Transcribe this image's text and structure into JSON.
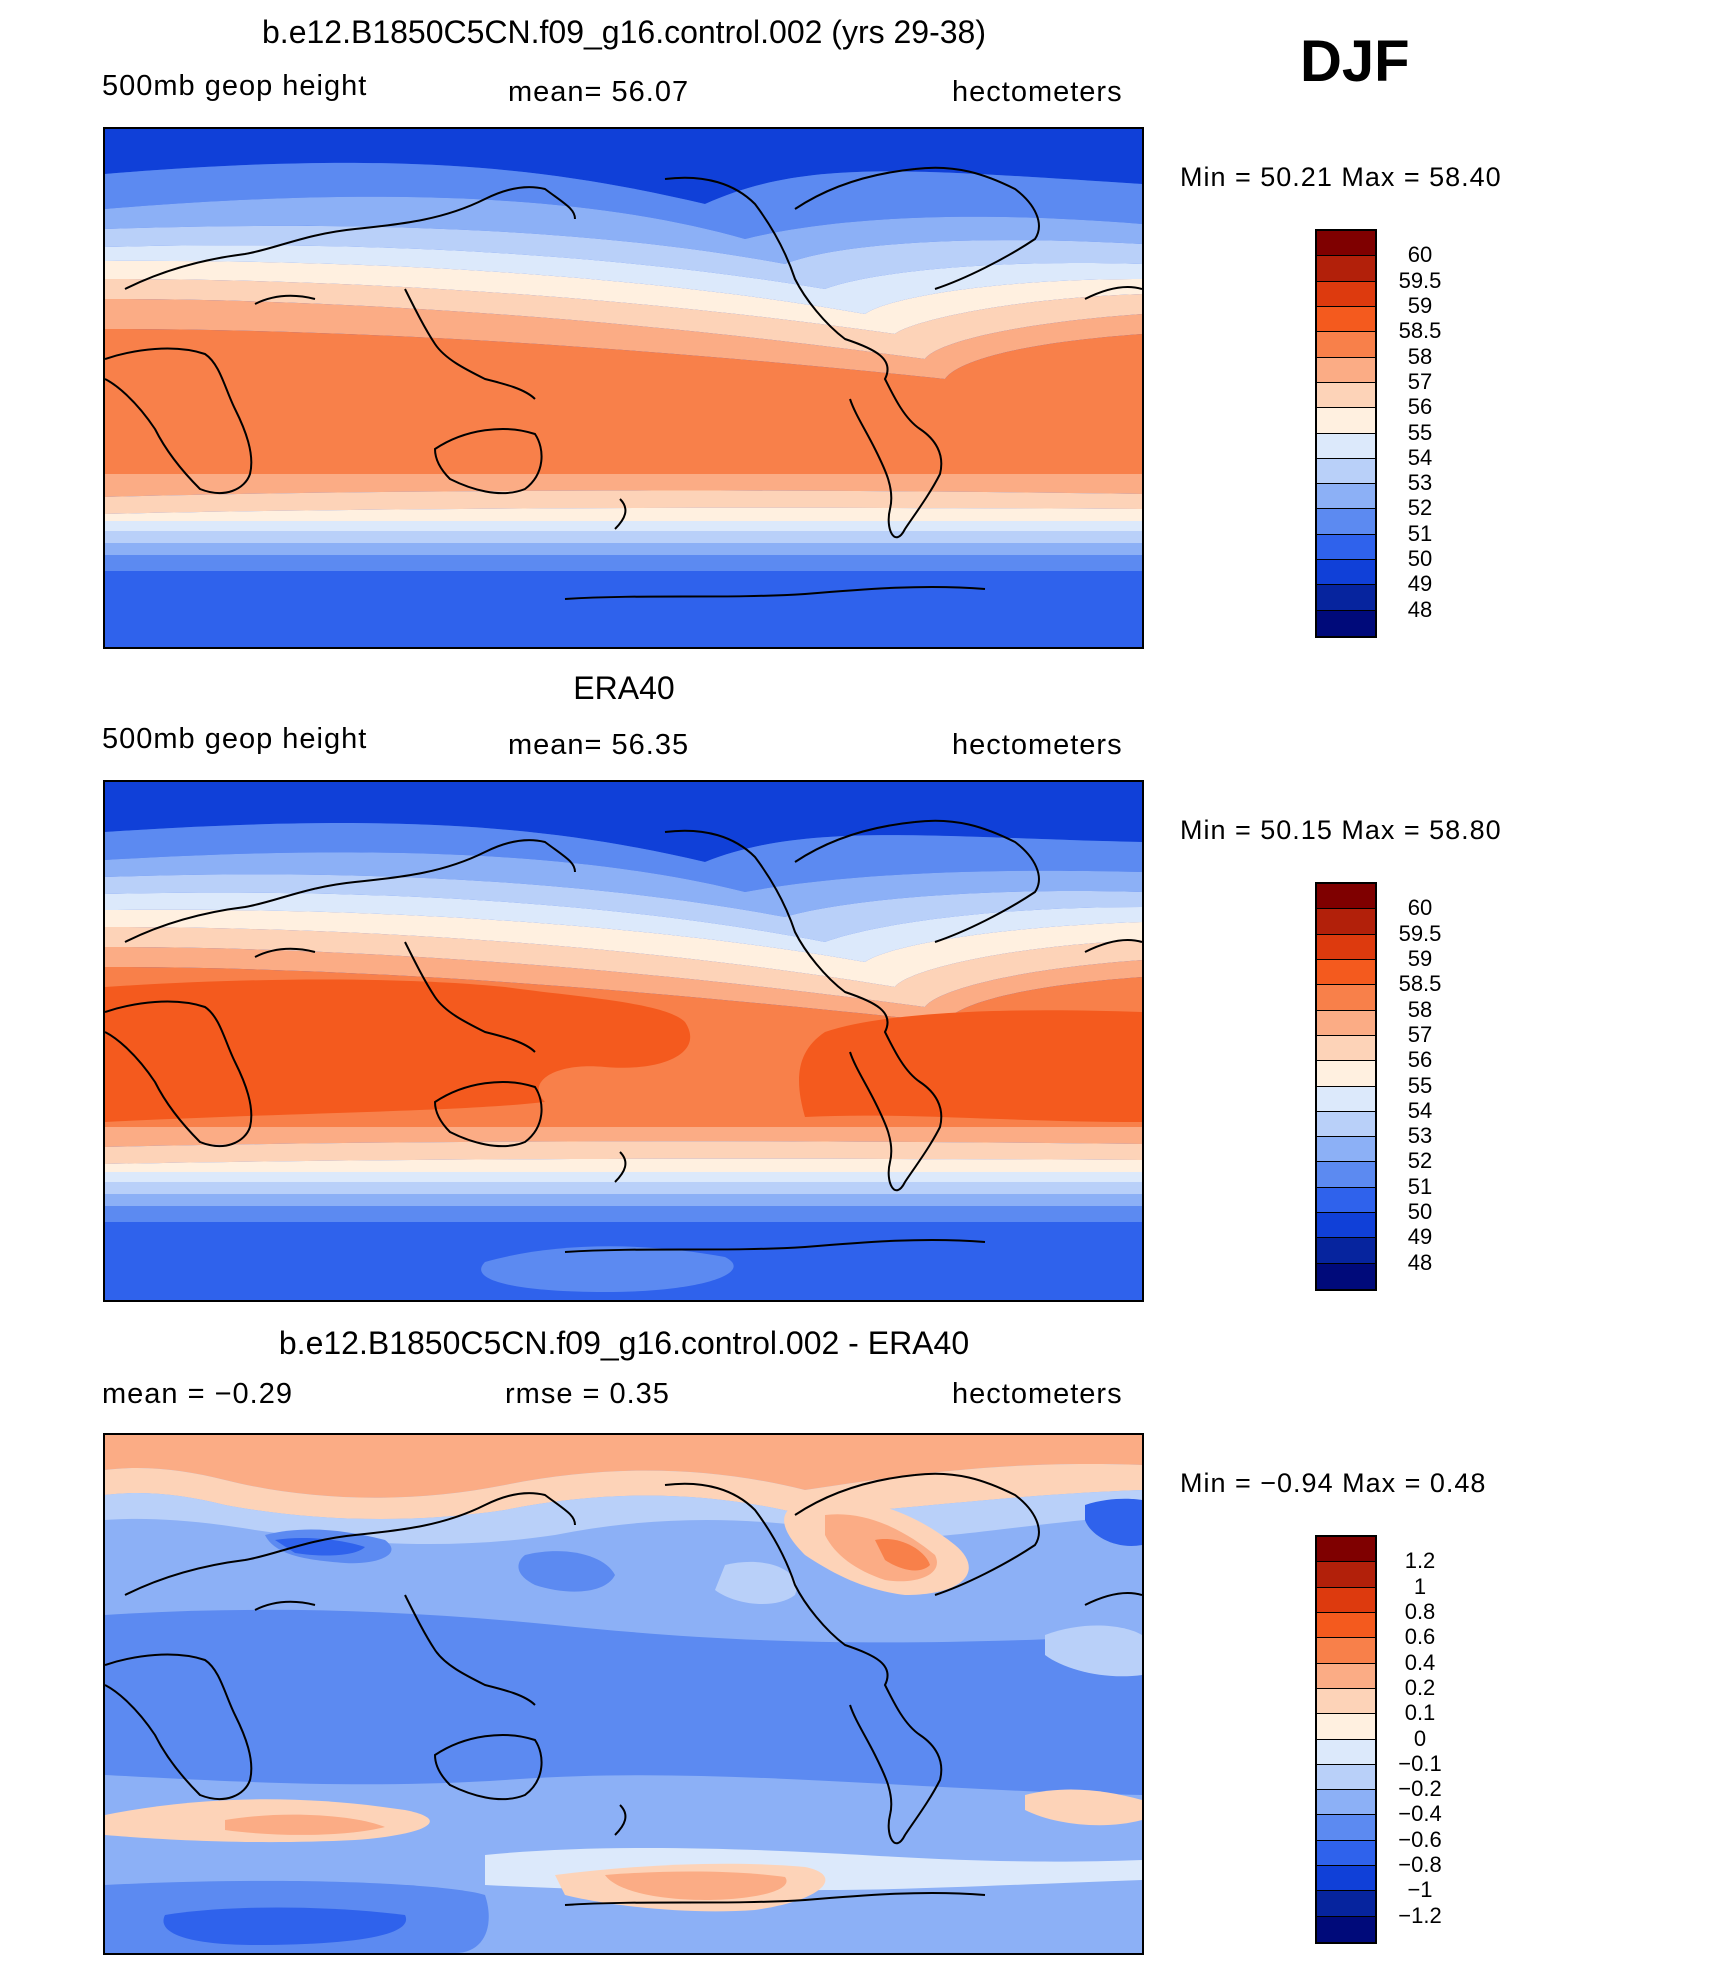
{
  "season": "DJF",
  "panels": [
    {
      "title": "b.e12.B1850C5CN.f09_g16.control.002 (yrs 29-38)",
      "left_label": "500mb  geop  height",
      "center_label": "mean=   56.07",
      "right_label": "hectometers",
      "min_max": "Min  =    50.21  Max  =    58.40",
      "colorbar": {
        "labels": [
          "60",
          "59.5",
          "59",
          "58.5",
          "58",
          "57",
          "56",
          "55",
          "54",
          "53",
          "52",
          "51",
          "50",
          "49",
          "48"
        ],
        "colors": [
          "#7f0000",
          "#b2200a",
          "#dd3a0e",
          "#f45a1e",
          "#f8804a",
          "#fbac85",
          "#fdd3b8",
          "#fff0e0",
          "#dce9fb",
          "#b9d0f9",
          "#8cb0f6",
          "#5c8af1",
          "#2f62ec",
          "#1040d8",
          "#06249e",
          "#000a7a"
        ]
      }
    },
    {
      "title": "ERA40",
      "left_label": "500mb  geop  height",
      "center_label": "mean=   56.35",
      "right_label": "hectometers",
      "min_max": "Min  =    50.15  Max  =    58.80",
      "colorbar": {
        "labels": [
          "60",
          "59.5",
          "59",
          "58.5",
          "58",
          "57",
          "56",
          "55",
          "54",
          "53",
          "52",
          "51",
          "50",
          "49",
          "48"
        ],
        "colors": [
          "#7f0000",
          "#b2200a",
          "#dd3a0e",
          "#f45a1e",
          "#f8804a",
          "#fbac85",
          "#fdd3b8",
          "#fff0e0",
          "#dce9fb",
          "#b9d0f9",
          "#8cb0f6",
          "#5c8af1",
          "#2f62ec",
          "#1040d8",
          "#06249e",
          "#000a7a"
        ]
      }
    },
    {
      "title": "b.e12.B1850C5CN.f09_g16.control.002 - ERA40",
      "left_label": "mean  =   −0.29",
      "center_label": "rmse  =    0.35",
      "right_label": "hectometers",
      "min_max": "Min  =   −0.94  Max  =     0.48",
      "colorbar": {
        "labels": [
          "1.2",
          "1",
          "0.8",
          "0.6",
          "0.4",
          "0.2",
          "0.1",
          "0",
          "−0.1",
          "−0.2",
          "−0.4",
          "−0.6",
          "−0.8",
          "−1",
          "−1.2"
        ],
        "colors": [
          "#7f0000",
          "#b2200a",
          "#dd3a0e",
          "#f45a1e",
          "#f8804a",
          "#fbac85",
          "#fdd3b8",
          "#fff0e0",
          "#dce9fb",
          "#b9d0f9",
          "#8cb0f6",
          "#5c8af1",
          "#2f62ec",
          "#1040d8",
          "#06249e",
          "#000a7a"
        ]
      }
    }
  ]
}
